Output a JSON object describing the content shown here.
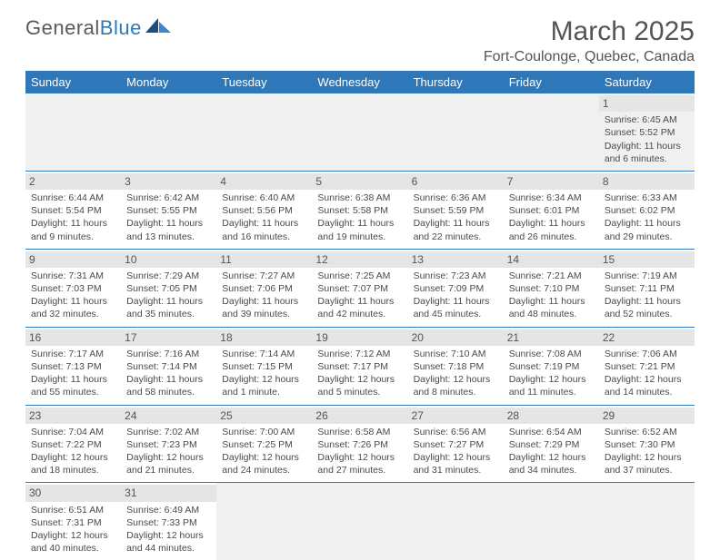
{
  "brand": {
    "part1": "General",
    "part2": "Blue"
  },
  "title": "March 2025",
  "location": "Fort-Coulonge, Quebec, Canada",
  "colors": {
    "header_bg": "#2e77b8",
    "header_text": "#ffffff",
    "cell_border": "#2e77b8",
    "daynum_bg": "#e5e5e5",
    "text": "#4a4a4a",
    "empty_bg": "#f0f0f0"
  },
  "weekdays": [
    "Sunday",
    "Monday",
    "Tuesday",
    "Wednesday",
    "Thursday",
    "Friday",
    "Saturday"
  ],
  "weeks": [
    [
      null,
      null,
      null,
      null,
      null,
      null,
      {
        "n": "1",
        "sr": "Sunrise: 6:45 AM",
        "ss": "Sunset: 5:52 PM",
        "dl": "Daylight: 11 hours and 6 minutes."
      }
    ],
    [
      {
        "n": "2",
        "sr": "Sunrise: 6:44 AM",
        "ss": "Sunset: 5:54 PM",
        "dl": "Daylight: 11 hours and 9 minutes."
      },
      {
        "n": "3",
        "sr": "Sunrise: 6:42 AM",
        "ss": "Sunset: 5:55 PM",
        "dl": "Daylight: 11 hours and 13 minutes."
      },
      {
        "n": "4",
        "sr": "Sunrise: 6:40 AM",
        "ss": "Sunset: 5:56 PM",
        "dl": "Daylight: 11 hours and 16 minutes."
      },
      {
        "n": "5",
        "sr": "Sunrise: 6:38 AM",
        "ss": "Sunset: 5:58 PM",
        "dl": "Daylight: 11 hours and 19 minutes."
      },
      {
        "n": "6",
        "sr": "Sunrise: 6:36 AM",
        "ss": "Sunset: 5:59 PM",
        "dl": "Daylight: 11 hours and 22 minutes."
      },
      {
        "n": "7",
        "sr": "Sunrise: 6:34 AM",
        "ss": "Sunset: 6:01 PM",
        "dl": "Daylight: 11 hours and 26 minutes."
      },
      {
        "n": "8",
        "sr": "Sunrise: 6:33 AM",
        "ss": "Sunset: 6:02 PM",
        "dl": "Daylight: 11 hours and 29 minutes."
      }
    ],
    [
      {
        "n": "9",
        "sr": "Sunrise: 7:31 AM",
        "ss": "Sunset: 7:03 PM",
        "dl": "Daylight: 11 hours and 32 minutes."
      },
      {
        "n": "10",
        "sr": "Sunrise: 7:29 AM",
        "ss": "Sunset: 7:05 PM",
        "dl": "Daylight: 11 hours and 35 minutes."
      },
      {
        "n": "11",
        "sr": "Sunrise: 7:27 AM",
        "ss": "Sunset: 7:06 PM",
        "dl": "Daylight: 11 hours and 39 minutes."
      },
      {
        "n": "12",
        "sr": "Sunrise: 7:25 AM",
        "ss": "Sunset: 7:07 PM",
        "dl": "Daylight: 11 hours and 42 minutes."
      },
      {
        "n": "13",
        "sr": "Sunrise: 7:23 AM",
        "ss": "Sunset: 7:09 PM",
        "dl": "Daylight: 11 hours and 45 minutes."
      },
      {
        "n": "14",
        "sr": "Sunrise: 7:21 AM",
        "ss": "Sunset: 7:10 PM",
        "dl": "Daylight: 11 hours and 48 minutes."
      },
      {
        "n": "15",
        "sr": "Sunrise: 7:19 AM",
        "ss": "Sunset: 7:11 PM",
        "dl": "Daylight: 11 hours and 52 minutes."
      }
    ],
    [
      {
        "n": "16",
        "sr": "Sunrise: 7:17 AM",
        "ss": "Sunset: 7:13 PM",
        "dl": "Daylight: 11 hours and 55 minutes."
      },
      {
        "n": "17",
        "sr": "Sunrise: 7:16 AM",
        "ss": "Sunset: 7:14 PM",
        "dl": "Daylight: 11 hours and 58 minutes."
      },
      {
        "n": "18",
        "sr": "Sunrise: 7:14 AM",
        "ss": "Sunset: 7:15 PM",
        "dl": "Daylight: 12 hours and 1 minute."
      },
      {
        "n": "19",
        "sr": "Sunrise: 7:12 AM",
        "ss": "Sunset: 7:17 PM",
        "dl": "Daylight: 12 hours and 5 minutes."
      },
      {
        "n": "20",
        "sr": "Sunrise: 7:10 AM",
        "ss": "Sunset: 7:18 PM",
        "dl": "Daylight: 12 hours and 8 minutes."
      },
      {
        "n": "21",
        "sr": "Sunrise: 7:08 AM",
        "ss": "Sunset: 7:19 PM",
        "dl": "Daylight: 12 hours and 11 minutes."
      },
      {
        "n": "22",
        "sr": "Sunrise: 7:06 AM",
        "ss": "Sunset: 7:21 PM",
        "dl": "Daylight: 12 hours and 14 minutes."
      }
    ],
    [
      {
        "n": "23",
        "sr": "Sunrise: 7:04 AM",
        "ss": "Sunset: 7:22 PM",
        "dl": "Daylight: 12 hours and 18 minutes."
      },
      {
        "n": "24",
        "sr": "Sunrise: 7:02 AM",
        "ss": "Sunset: 7:23 PM",
        "dl": "Daylight: 12 hours and 21 minutes."
      },
      {
        "n": "25",
        "sr": "Sunrise: 7:00 AM",
        "ss": "Sunset: 7:25 PM",
        "dl": "Daylight: 12 hours and 24 minutes."
      },
      {
        "n": "26",
        "sr": "Sunrise: 6:58 AM",
        "ss": "Sunset: 7:26 PM",
        "dl": "Daylight: 12 hours and 27 minutes."
      },
      {
        "n": "27",
        "sr": "Sunrise: 6:56 AM",
        "ss": "Sunset: 7:27 PM",
        "dl": "Daylight: 12 hours and 31 minutes."
      },
      {
        "n": "28",
        "sr": "Sunrise: 6:54 AM",
        "ss": "Sunset: 7:29 PM",
        "dl": "Daylight: 12 hours and 34 minutes."
      },
      {
        "n": "29",
        "sr": "Sunrise: 6:52 AM",
        "ss": "Sunset: 7:30 PM",
        "dl": "Daylight: 12 hours and 37 minutes."
      }
    ],
    [
      {
        "n": "30",
        "sr": "Sunrise: 6:51 AM",
        "ss": "Sunset: 7:31 PM",
        "dl": "Daylight: 12 hours and 40 minutes."
      },
      {
        "n": "31",
        "sr": "Sunrise: 6:49 AM",
        "ss": "Sunset: 7:33 PM",
        "dl": "Daylight: 12 hours and 44 minutes."
      },
      null,
      null,
      null,
      null,
      null
    ]
  ]
}
